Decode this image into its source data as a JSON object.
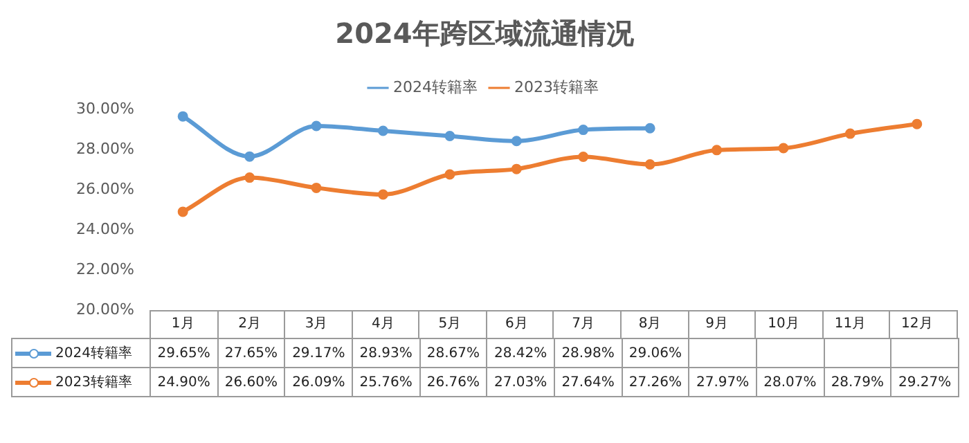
{
  "chart_data": {
    "type": "line",
    "title": "2024年跨区域流通情况",
    "categories": [
      "1月",
      "2月",
      "3月",
      "4月",
      "5月",
      "6月",
      "7月",
      "8月",
      "9月",
      "10月",
      "11月",
      "12月"
    ],
    "series": [
      {
        "name": "2024转籍率",
        "color": "#5b9bd5",
        "values": [
          29.65,
          27.65,
          29.17,
          28.93,
          28.67,
          28.42,
          28.98,
          29.06,
          null,
          null,
          null,
          null
        ],
        "value_labels": [
          "29.65%",
          "27.65%",
          "29.17%",
          "28.93%",
          "28.67%",
          "28.42%",
          "28.98%",
          "29.06%",
          null,
          null,
          null,
          null
        ]
      },
      {
        "name": "2023转籍率",
        "color": "#ed7d31",
        "values": [
          24.9,
          26.6,
          26.09,
          25.76,
          26.76,
          27.03,
          27.64,
          27.26,
          27.97,
          28.07,
          28.79,
          29.27
        ],
        "value_labels": [
          "24.90%",
          "26.60%",
          "26.09%",
          "25.76%",
          "26.76%",
          "27.03%",
          "27.64%",
          "27.26%",
          "27.97%",
          "28.07%",
          "28.79%",
          "29.27%"
        ]
      }
    ],
    "ylim": [
      20,
      30
    ],
    "yticks": [
      {
        "value": 20,
        "label": "20.00%"
      },
      {
        "value": 22,
        "label": "22.00%"
      },
      {
        "value": 24,
        "label": "24.00%"
      },
      {
        "value": 26,
        "label": "26.00%"
      },
      {
        "value": 28,
        "label": "28.00%"
      },
      {
        "value": 30,
        "label": "30.00%"
      }
    ],
    "grid": false,
    "legend": "top",
    "marker": "circle",
    "line_style": "solid"
  }
}
